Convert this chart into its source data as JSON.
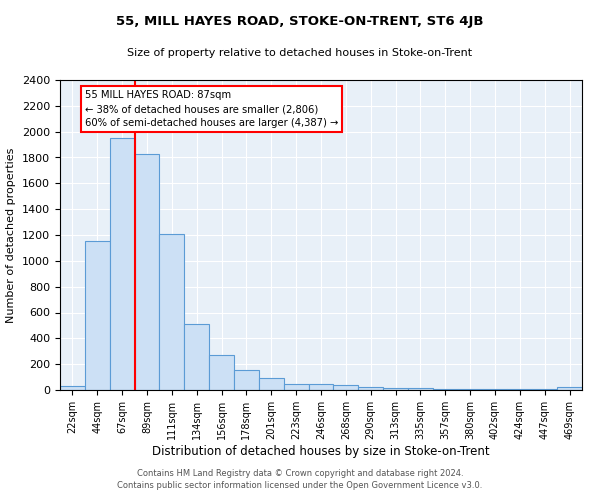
{
  "title": "55, MILL HAYES ROAD, STOKE-ON-TRENT, ST6 4JB",
  "subtitle": "Size of property relative to detached houses in Stoke-on-Trent",
  "xlabel": "Distribution of detached houses by size in Stoke-on-Trent",
  "ylabel": "Number of detached properties",
  "footer1": "Contains HM Land Registry data © Crown copyright and database right 2024.",
  "footer2": "Contains public sector information licensed under the Open Government Licence v3.0.",
  "bar_labels": [
    "22sqm",
    "44sqm",
    "67sqm",
    "89sqm",
    "111sqm",
    "134sqm",
    "156sqm",
    "178sqm",
    "201sqm",
    "223sqm",
    "246sqm",
    "268sqm",
    "290sqm",
    "313sqm",
    "335sqm",
    "357sqm",
    "380sqm",
    "402sqm",
    "424sqm",
    "447sqm",
    "469sqm"
  ],
  "bar_values": [
    30,
    1150,
    1950,
    1830,
    1210,
    510,
    270,
    155,
    90,
    50,
    45,
    40,
    20,
    18,
    15,
    10,
    8,
    8,
    5,
    5,
    20
  ],
  "bar_color": "#cce0f5",
  "bar_edge_color": "#5b9bd5",
  "vline_color": "red",
  "vline_x_index": 3,
  "annotation_text": "55 MILL HAYES ROAD: 87sqm\n← 38% of detached houses are smaller (2,806)\n60% of semi-detached houses are larger (4,387) →",
  "annotation_box_color": "white",
  "annotation_box_edge": "red",
  "ylim": [
    0,
    2400
  ],
  "yticks": [
    0,
    200,
    400,
    600,
    800,
    1000,
    1200,
    1400,
    1600,
    1800,
    2000,
    2200,
    2400
  ],
  "background_color": "#e8f0f8",
  "grid_color": "white"
}
